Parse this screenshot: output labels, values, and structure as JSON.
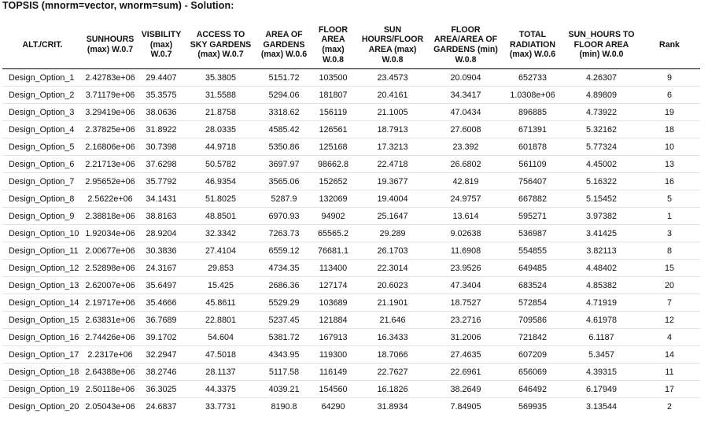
{
  "title": "TOPSIS (mnorm=vector, wnorm=sum) - Solution:",
  "columns": [
    "ALT./CRIT.",
    "SUNHOURS\n(max) W.0.7",
    "VISBILITY\n(max)\nW.0.7",
    "ACCESS TO\nSKY GARDENS\n(max) W.0.7",
    "AREA OF\nGARDENS\n(max) W.0.6",
    "FLOOR\nAREA\n(max)\nW.0.8",
    "SUN\nHOURS/FLOOR\nAREA (max)\nW.0.8",
    "FLOOR\nAREA/AREA OF\nGARDENS (min)\nW.0.8",
    "TOTAL\nRADIATION\n(max) W.0.6",
    "SUN_HOURS TO\nFLOOR AREA\n(min) W.0.0",
    "Rank"
  ],
  "rows": [
    [
      "Design_Option_1",
      "2.42783e+06",
      "29.4407",
      "35.3805",
      "5151.72",
      "103500",
      "23.4573",
      "20.0904",
      "652733",
      "4.26307",
      "9"
    ],
    [
      "Design_Option_2",
      "3.71179e+06",
      "35.3575",
      "31.5588",
      "5294.06",
      "181807",
      "20.4161",
      "34.3417",
      "1.0308e+06",
      "4.89809",
      "6"
    ],
    [
      "Design_Option_3",
      "3.29419e+06",
      "38.0636",
      "21.8758",
      "3318.62",
      "156119",
      "21.1005",
      "47.0434",
      "896885",
      "4.73922",
      "19"
    ],
    [
      "Design_Option_4",
      "2.37825e+06",
      "31.8922",
      "28.0335",
      "4585.42",
      "126561",
      "18.7913",
      "27.6008",
      "671391",
      "5.32162",
      "18"
    ],
    [
      "Design_Option_5",
      "2.16806e+06",
      "30.7398",
      "44.9718",
      "5350.86",
      "125168",
      "17.3213",
      "23.392",
      "601878",
      "5.77324",
      "10"
    ],
    [
      "Design_Option_6",
      "2.21713e+06",
      "37.6298",
      "50.5782",
      "3697.97",
      "98662.8",
      "22.4718",
      "26.6802",
      "561109",
      "4.45002",
      "13"
    ],
    [
      "Design_Option_7",
      "2.95652e+06",
      "35.7792",
      "46.9354",
      "3565.06",
      "152652",
      "19.3677",
      "42.819",
      "756407",
      "5.16322",
      "16"
    ],
    [
      "Design_Option_8",
      "2.5622e+06",
      "34.1431",
      "51.8025",
      "5287.9",
      "132069",
      "19.4004",
      "24.9757",
      "667882",
      "5.15452",
      "5"
    ],
    [
      "Design_Option_9",
      "2.38818e+06",
      "38.8163",
      "48.8501",
      "6970.93",
      "94902",
      "25.1647",
      "13.614",
      "595271",
      "3.97382",
      "1"
    ],
    [
      "Design_Option_10",
      "1.92034e+06",
      "28.9204",
      "32.3342",
      "7263.73",
      "65565.2",
      "29.289",
      "9.02638",
      "536987",
      "3.41425",
      "3"
    ],
    [
      "Design_Option_11",
      "2.00677e+06",
      "30.3836",
      "27.4104",
      "6559.12",
      "76681.1",
      "26.1703",
      "11.6908",
      "554855",
      "3.82113",
      "8"
    ],
    [
      "Design_Option_12",
      "2.52898e+06",
      "24.3167",
      "29.853",
      "4734.35",
      "113400",
      "22.3014",
      "23.9526",
      "649485",
      "4.48402",
      "15"
    ],
    [
      "Design_Option_13",
      "2.62007e+06",
      "35.6497",
      "15.425",
      "2686.36",
      "127174",
      "20.6023",
      "47.3404",
      "683524",
      "4.85382",
      "20"
    ],
    [
      "Design_Option_14",
      "2.19717e+06",
      "35.4666",
      "45.8611",
      "5529.29",
      "103689",
      "21.1901",
      "18.7527",
      "572854",
      "4.71919",
      "7"
    ],
    [
      "Design_Option_15",
      "2.63831e+06",
      "36.7689",
      "22.8801",
      "5237.45",
      "121884",
      "21.646",
      "23.2716",
      "709586",
      "4.61978",
      "12"
    ],
    [
      "Design_Option_16",
      "2.74426e+06",
      "39.1702",
      "54.604",
      "5381.72",
      "167913",
      "16.3433",
      "31.2006",
      "721842",
      "6.1187",
      "4"
    ],
    [
      "Design_Option_17",
      "2.2317e+06",
      "32.2947",
      "47.5018",
      "4343.95",
      "119300",
      "18.7066",
      "27.4635",
      "607209",
      "5.3457",
      "14"
    ],
    [
      "Design_Option_18",
      "2.64388e+06",
      "38.2746",
      "28.1137",
      "5117.58",
      "116149",
      "22.7627",
      "22.6961",
      "656069",
      "4.39315",
      "11"
    ],
    [
      "Design_Option_19",
      "2.50118e+06",
      "36.3025",
      "44.3375",
      "4039.21",
      "154560",
      "16.1826",
      "38.2649",
      "646492",
      "6.17949",
      "17"
    ],
    [
      "Design_Option_20",
      "2.05043e+06",
      "24.6837",
      "33.7731",
      "8190.8",
      "64290",
      "31.8934",
      "7.84905",
      "569935",
      "3.13544",
      "2"
    ]
  ]
}
